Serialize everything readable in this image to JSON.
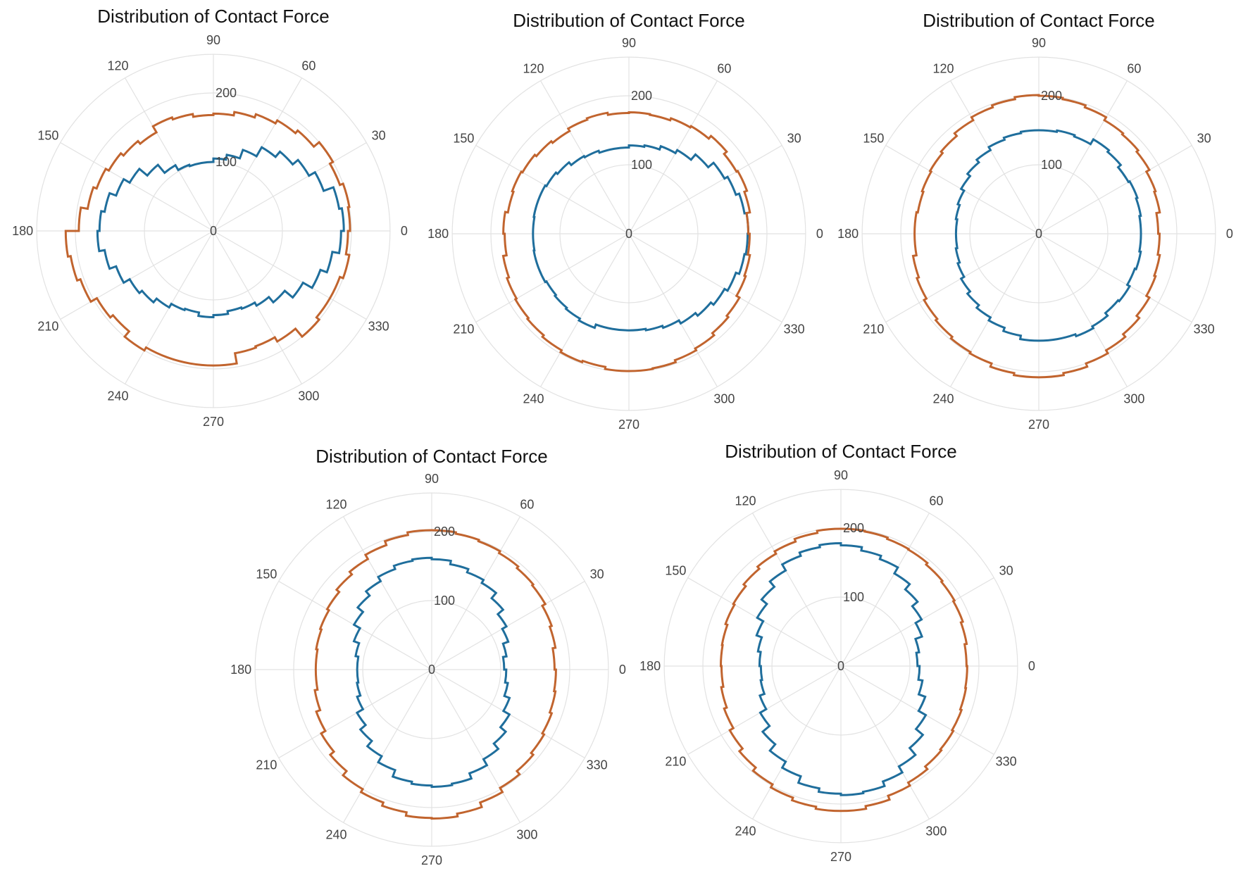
{
  "colors": {
    "series_a": "#1f6e9c",
    "series_b": "#c1642e",
    "grid": "#e2e2e2"
  },
  "chart_data": [
    {
      "type": "polar-step-histogram",
      "title": "Distribution of Contact Force",
      "theta_ticks": [
        0,
        30,
        60,
        90,
        120,
        150,
        180,
        210,
        240,
        270,
        300,
        330
      ],
      "r_ticks": [
        0,
        100,
        200
      ],
      "rlim": [
        0,
        256
      ],
      "bin_width_deg": 10,
      "grid": true,
      "series": [
        {
          "name": "blue",
          "values": [
            189,
            185,
            170,
            160,
            150,
            140,
            125,
            112,
            105,
            100,
            100,
            102,
            110,
            125,
            140,
            150,
            160,
            165,
            168,
            160,
            150,
            140,
            135,
            128,
            122,
            120,
            125,
            122,
            118,
            120,
            125,
            135,
            150,
            165,
            175,
            185
          ]
        },
        {
          "name": "orange",
          "values": [
            198,
            200,
            195,
            200,
            190,
            185,
            180,
            175,
            170,
            168,
            172,
            175,
            165,
            170,
            175,
            180,
            185,
            195,
            214,
            210,
            205,
            195,
            190,
            200,
            195,
            195,
            195,
            195,
            180,
            178,
            185,
            200,
            195,
            195,
            200,
            195
          ]
        }
      ]
    },
    {
      "type": "polar-step-histogram",
      "title": "Distribution of Contact Force",
      "theta_ticks": [
        0,
        30,
        60,
        90,
        120,
        150,
        180,
        210,
        240,
        270,
        300,
        330
      ],
      "r_ticks": [
        0,
        100,
        200
      ],
      "rlim": [
        0,
        256
      ],
      "bin_width_deg": 10,
      "grid": true,
      "series": [
        {
          "name": "blue",
          "values": [
            173,
            170,
            165,
            160,
            150,
            140,
            135,
            130,
            128,
            125,
            125,
            128,
            130,
            135,
            138,
            140,
            140,
            139,
            139,
            140,
            140,
            138,
            140,
            142,
            145,
            140,
            140,
            140,
            142,
            145,
            150,
            155,
            160,
            165,
            170,
            172
          ]
        },
        {
          "name": "orange",
          "values": [
            173,
            178,
            182,
            180,
            185,
            180,
            178,
            175,
            176,
            175,
            178,
            176,
            172,
            175,
            178,
            180,
            178,
            182,
            180,
            185,
            188,
            190,
            192,
            195,
            198,
            196,
            199,
            199,
            198,
            195,
            192,
            188,
            185,
            180,
            178,
            175
          ]
        }
      ]
    },
    {
      "type": "polar-step-histogram",
      "title": "Distribution of Contact Force",
      "theta_ticks": [
        0,
        30,
        60,
        90,
        120,
        150,
        180,
        210,
        240,
        270,
        300,
        330
      ],
      "r_ticks": [
        0,
        100,
        200
      ],
      "rlim": [
        0,
        256
      ],
      "bin_width_deg": 10,
      "grid": true,
      "series": [
        {
          "name": "blue",
          "values": [
            148,
            150,
            152,
            150,
            155,
            158,
            150,
            152,
            150,
            150,
            148,
            145,
            140,
            135,
            130,
            125,
            122,
            120,
            120,
            122,
            125,
            130,
            135,
            140,
            145,
            150,
            155,
            155,
            155,
            158,
            155,
            150,
            152,
            148,
            150,
            148
          ]
        },
        {
          "name": "orange",
          "values": [
            173,
            178,
            180,
            185,
            188,
            190,
            195,
            198,
            200,
            201,
            198,
            195,
            190,
            185,
            182,
            180,
            178,
            180,
            180,
            185,
            188,
            192,
            195,
            198,
            200,
            205,
            208,
            208,
            205,
            200,
            195,
            190,
            185,
            180,
            178,
            175
          ]
        }
      ]
    },
    {
      "type": "polar-step-histogram",
      "title": "Distribution of Contact Force",
      "theta_ticks": [
        0,
        30,
        60,
        90,
        120,
        150,
        180,
        210,
        240,
        270,
        300,
        330
      ],
      "r_ticks": [
        0,
        100,
        200
      ],
      "rlim": [
        0,
        256
      ],
      "bin_width_deg": 10,
      "grid": true,
      "series": [
        {
          "name": "blue",
          "values": [
            105,
            110,
            118,
            125,
            135,
            145,
            150,
            155,
            160,
            162,
            160,
            155,
            148,
            140,
            130,
            120,
            112,
            108,
            108,
            110,
            115,
            125,
            135,
            145,
            155,
            165,
            168,
            170,
            168,
            160,
            150,
            140,
            130,
            120,
            112,
            108
          ]
        },
        {
          "name": "orange",
          "values": [
            178,
            182,
            185,
            190,
            192,
            195,
            198,
            200,
            202,
            202,
            198,
            192,
            185,
            180,
            175,
            172,
            170,
            168,
            168,
            172,
            178,
            185,
            192,
            200,
            205,
            210,
            215,
            216,
            212,
            205,
            198,
            192,
            188,
            185,
            182,
            180
          ]
        }
      ]
    },
    {
      "type": "polar-step-histogram",
      "title": "Distribution of Contact Force",
      "theta_ticks": [
        0,
        30,
        60,
        90,
        120,
        150,
        180,
        210,
        240,
        270,
        300,
        330
      ],
      "r_ticks": [
        0,
        100,
        200
      ],
      "rlim": [
        0,
        256
      ],
      "bin_width_deg": 10,
      "grid": true,
      "series": [
        {
          "name": "blue",
          "values": [
            111,
            115,
            125,
            135,
            145,
            155,
            165,
            170,
            175,
            178,
            175,
            170,
            160,
            150,
            140,
            130,
            122,
            118,
            116,
            118,
            125,
            135,
            148,
            160,
            170,
            180,
            185,
            187,
            185,
            178,
            168,
            155,
            142,
            130,
            120,
            114
          ]
        },
        {
          "name": "orange",
          "values": [
            182,
            185,
            188,
            190,
            192,
            195,
            196,
            198,
            199,
            199,
            196,
            192,
            188,
            184,
            180,
            178,
            175,
            174,
            173,
            176,
            180,
            186,
            192,
            198,
            203,
            207,
            210,
            210,
            206,
            200,
            195,
            190,
            188,
            186,
            184,
            183
          ]
        }
      ]
    }
  ]
}
